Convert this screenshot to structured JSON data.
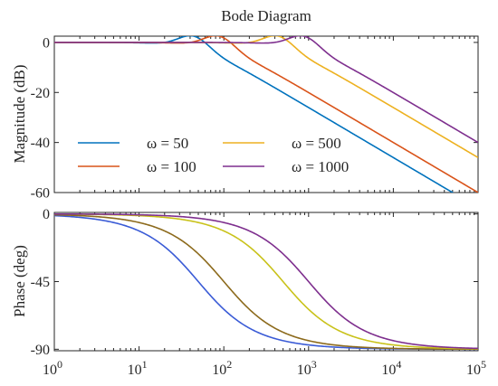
{
  "chart_data": {
    "type": "line",
    "title": "Bode Diagram",
    "xscale": "log",
    "xlim": [
      1,
      100000
    ],
    "x_ticks": [
      {
        "base": "10",
        "exp": "0"
      },
      {
        "base": "10",
        "exp": "1"
      },
      {
        "base": "10",
        "exp": "2"
      },
      {
        "base": "10",
        "exp": "3"
      },
      {
        "base": "10",
        "exp": "4"
      },
      {
        "base": "10",
        "exp": "5"
      }
    ],
    "grid": false,
    "legend_placement": "lower-left of magnitude panel, two columns",
    "panels": [
      {
        "id": "magnitude",
        "ylabel": "Magnitude (dB)",
        "ylim": [
          -60,
          2.5
        ],
        "y_ticks": [
          "0",
          "-20",
          "-40",
          "-60"
        ],
        "y_tick_values": [
          0,
          -20,
          -40,
          -60
        ]
      },
      {
        "id": "phase",
        "ylabel": "Phase (deg)",
        "ylim": [
          -91,
          1
        ],
        "y_ticks": [
          "0",
          "-45",
          "-90"
        ],
        "y_tick_values": [
          0,
          -45,
          -90
        ]
      }
    ],
    "series": [
      {
        "name": "ω = 50",
        "omega": 50,
        "mag_color": "#0072BD",
        "phase_color": "#3a5bd6",
        "magnitude_db": {
          "x": [
            1,
            10,
            30,
            50,
            100,
            1000,
            10000,
            60000
          ],
          "y": [
            0,
            0,
            1,
            2,
            -6,
            -26,
            -46,
            -61.5
          ]
        },
        "phase_deg": {
          "x": [
            1,
            10,
            25,
            50,
            100,
            200,
            500,
            1000,
            10000,
            100000
          ],
          "y": [
            -1.1,
            -11.3,
            -26.6,
            -45,
            -63.4,
            -76,
            -84.3,
            -87.1,
            -89.7,
            -90
          ]
        }
      },
      {
        "name": "ω = 100",
        "omega": 100,
        "mag_color": "#D95319",
        "phase_color": "#8c6a1c",
        "magnitude_db": {
          "x": [
            1,
            10,
            60,
            100,
            200,
            1000,
            10000,
            100000
          ],
          "y": [
            0,
            0,
            1,
            2,
            -4,
            -18,
            -38,
            -58
          ]
        },
        "phase_deg": {
          "x": [
            1,
            10,
            50,
            100,
            200,
            500,
            1000,
            10000,
            100000
          ],
          "y": [
            -0.6,
            -5.7,
            -26.6,
            -45,
            -63.4,
            -78.7,
            -84.3,
            -89.4,
            -90
          ]
        }
      },
      {
        "name": "ω = 500",
        "omega": 500,
        "mag_color": "#EDB120",
        "phase_color": "#c9c21a",
        "magnitude_db": {
          "x": [
            1,
            10,
            100,
            300,
            500,
            1000,
            10000,
            100000
          ],
          "y": [
            0,
            0,
            0,
            1,
            2,
            -4,
            -24,
            -44
          ]
        },
        "phase_deg": {
          "x": [
            1,
            10,
            100,
            250,
            500,
            1000,
            2500,
            10000,
            100000
          ],
          "y": [
            -0.1,
            -1.1,
            -11.3,
            -26.6,
            -45,
            -63.4,
            -78.7,
            -87.1,
            -89.7
          ]
        }
      },
      {
        "name": "ω = 1000",
        "omega": 1000,
        "mag_color": "#7E2F8E",
        "phase_color": "#7E2F8E",
        "magnitude_db": {
          "x": [
            1,
            10,
            100,
            600,
            1000,
            2000,
            10000,
            100000
          ],
          "y": [
            0,
            0,
            0,
            1,
            2,
            -4,
            -18,
            -38
          ]
        },
        "phase_deg": {
          "x": [
            1,
            10,
            100,
            500,
            1000,
            2000,
            5000,
            10000,
            100000
          ],
          "y": [
            0,
            -0.6,
            -5.7,
            -26.6,
            -45,
            -63.4,
            -78.7,
            -84.3,
            -89.4
          ]
        }
      }
    ]
  }
}
